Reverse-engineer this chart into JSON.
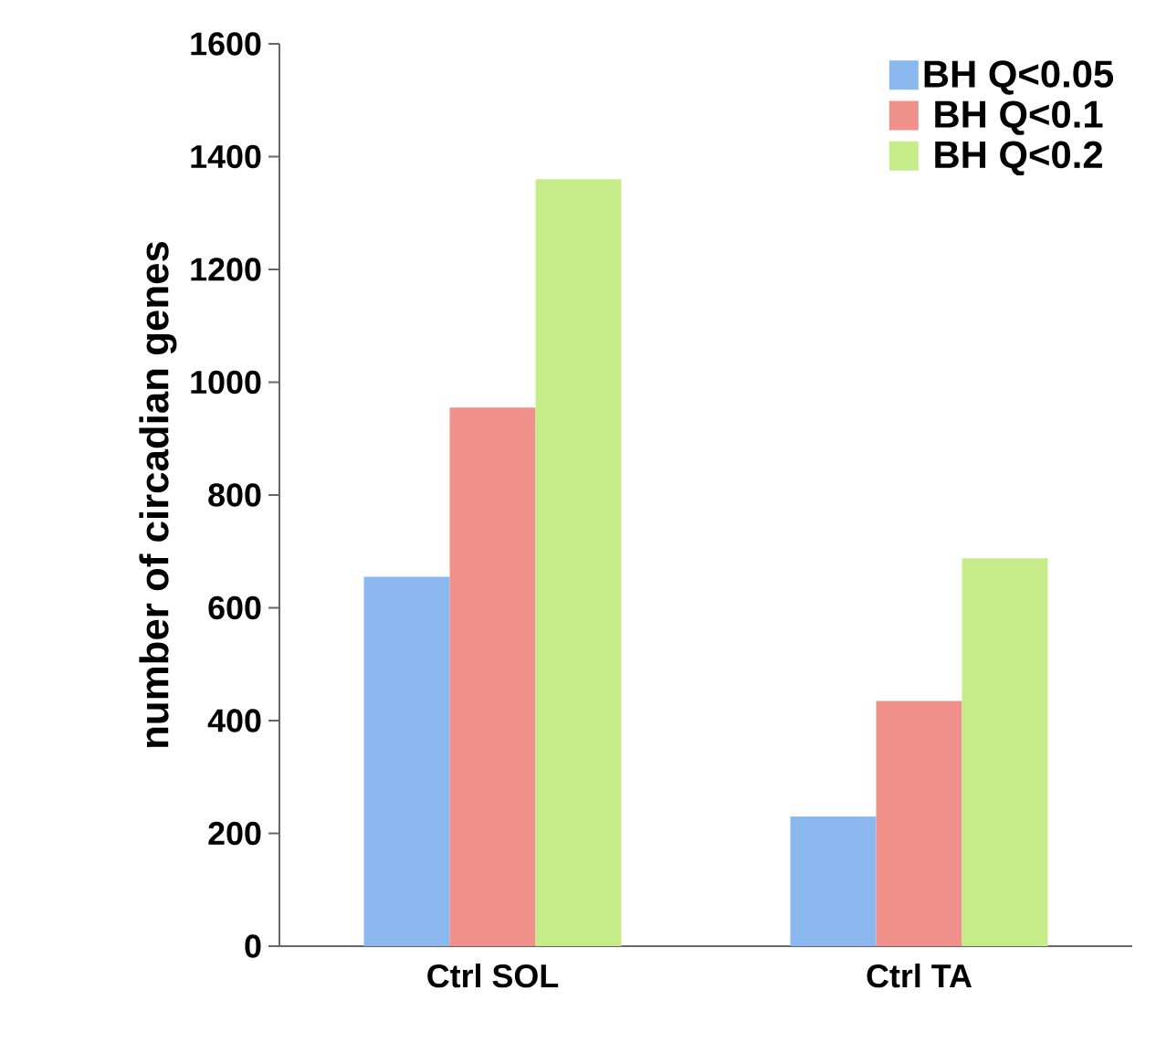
{
  "chart_data": {
    "type": "bar",
    "ylabel": "number of circadian genes",
    "categories": [
      "Ctrl SOL",
      "Ctrl TA"
    ],
    "series": [
      {
        "name": "BH Q<0.05",
        "color": "#8cb8f0",
        "values": [
          655,
          230
        ]
      },
      {
        "name": "BH Q<0.1",
        "color": "#f0908a",
        "values": [
          955,
          435
        ]
      },
      {
        "name": "BH Q<0.2",
        "color": "#c6ec8a",
        "values": [
          1360,
          688
        ]
      }
    ],
    "ylim": [
      0,
      1600
    ],
    "yticks": [
      0,
      200,
      400,
      600,
      800,
      1000,
      1200,
      1400,
      1600
    ],
    "legend": "top right"
  }
}
